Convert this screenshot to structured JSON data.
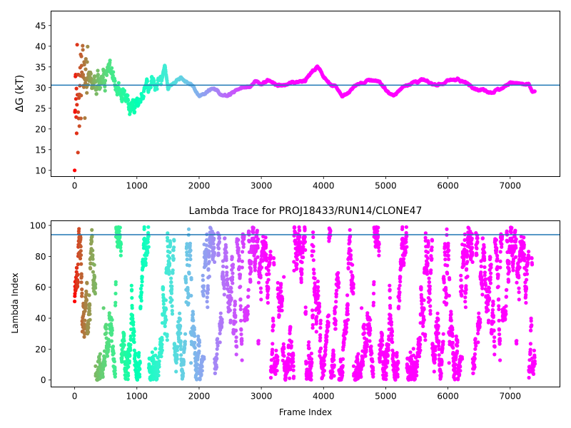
{
  "chart_data": [
    {
      "type": "scatter",
      "title": "",
      "xlabel": "",
      "ylabel": "ΔG (kT)",
      "xlim": [
        -380,
        7800
      ],
      "ylim": [
        8.5,
        48.5
      ],
      "xticks": [
        0,
        1000,
        2000,
        3000,
        4000,
        5000,
        6000,
        7000
      ],
      "yticks": [
        10,
        15,
        20,
        25,
        30,
        35,
        40,
        45
      ],
      "hline": 30.6,
      "hline_color": "#1f77b4",
      "colormap": "rainbow (red at frame 0 → violet at late frames)",
      "n_frames": 7400,
      "trace_anchors": [
        [
          0,
          26
        ],
        [
          60,
          30
        ],
        [
          150,
          33
        ],
        [
          300,
          32
        ],
        [
          450,
          33
        ],
        [
          600,
          34
        ],
        [
          700,
          30
        ],
        [
          800,
          28
        ],
        [
          900,
          26
        ],
        [
          1000,
          27
        ],
        [
          1100,
          28
        ],
        [
          1200,
          30
        ],
        [
          1300,
          31.5
        ],
        [
          1400,
          32
        ],
        [
          1450,
          35.5
        ],
        [
          1500,
          30
        ],
        [
          1600,
          31.5
        ],
        [
          1700,
          32.5
        ],
        [
          1800,
          31.5
        ],
        [
          1900,
          30
        ],
        [
          2000,
          28
        ],
        [
          2100,
          28.5
        ],
        [
          2200,
          29.5
        ],
        [
          2300,
          29
        ],
        [
          2400,
          28
        ],
        [
          2500,
          28.5
        ],
        [
          2600,
          29.5
        ],
        [
          2700,
          30
        ],
        [
          2800,
          30.5
        ],
        [
          2900,
          31.2
        ],
        [
          3000,
          31
        ],
        [
          3100,
          31.5
        ],
        [
          3200,
          31
        ],
        [
          3300,
          30.5
        ],
        [
          3400,
          30.6
        ],
        [
          3500,
          31.2
        ],
        [
          3600,
          31.5
        ],
        [
          3700,
          32
        ],
        [
          3800,
          33.5
        ],
        [
          3900,
          35
        ],
        [
          3950,
          34.5
        ],
        [
          4000,
          32.5
        ],
        [
          4100,
          31
        ],
        [
          4200,
          30.5
        ],
        [
          4300,
          28
        ],
        [
          4400,
          28.5
        ],
        [
          4500,
          30.5
        ],
        [
          4600,
          31
        ],
        [
          4700,
          31.5
        ],
        [
          4800,
          31.8
        ],
        [
          4900,
          31.5
        ],
        [
          5000,
          29.5
        ],
        [
          5100,
          28
        ],
        [
          5200,
          29
        ],
        [
          5300,
          30.5
        ],
        [
          5400,
          31.2
        ],
        [
          5500,
          31.5
        ],
        [
          5600,
          31.8
        ],
        [
          5700,
          31
        ],
        [
          5800,
          30.8
        ],
        [
          5900,
          31
        ],
        [
          6000,
          31.5
        ],
        [
          6100,
          32
        ],
        [
          6150,
          32.3
        ],
        [
          6200,
          31.5
        ],
        [
          6300,
          31
        ],
        [
          6400,
          30.5
        ],
        [
          6500,
          29.5
        ],
        [
          6600,
          29.5
        ],
        [
          6700,
          29
        ],
        [
          6800,
          29.5
        ],
        [
          6900,
          30
        ],
        [
          7000,
          31.5
        ],
        [
          7100,
          31
        ],
        [
          7200,
          30.8
        ],
        [
          7300,
          30.5
        ],
        [
          7350,
          29
        ],
        [
          7400,
          29
        ]
      ]
    },
    {
      "type": "scatter",
      "title": "Lambda Trace for PROJ18433/RUN14/CLONE47",
      "xlabel": "Frame Index",
      "ylabel": "Lambda Index",
      "xlim": [
        -380,
        7800
      ],
      "ylim": [
        -4.5,
        103
      ],
      "xticks": [
        0,
        1000,
        2000,
        3000,
        4000,
        5000,
        6000,
        7000
      ],
      "yticks": [
        0,
        20,
        40,
        60,
        80,
        100
      ],
      "hline": 94,
      "hline_color": "#1f77b4",
      "colormap": "rainbow (red at frame 0 → violet at late frames)",
      "n_frames": 7400,
      "lambda_min": 0,
      "lambda_max": 99
    }
  ]
}
